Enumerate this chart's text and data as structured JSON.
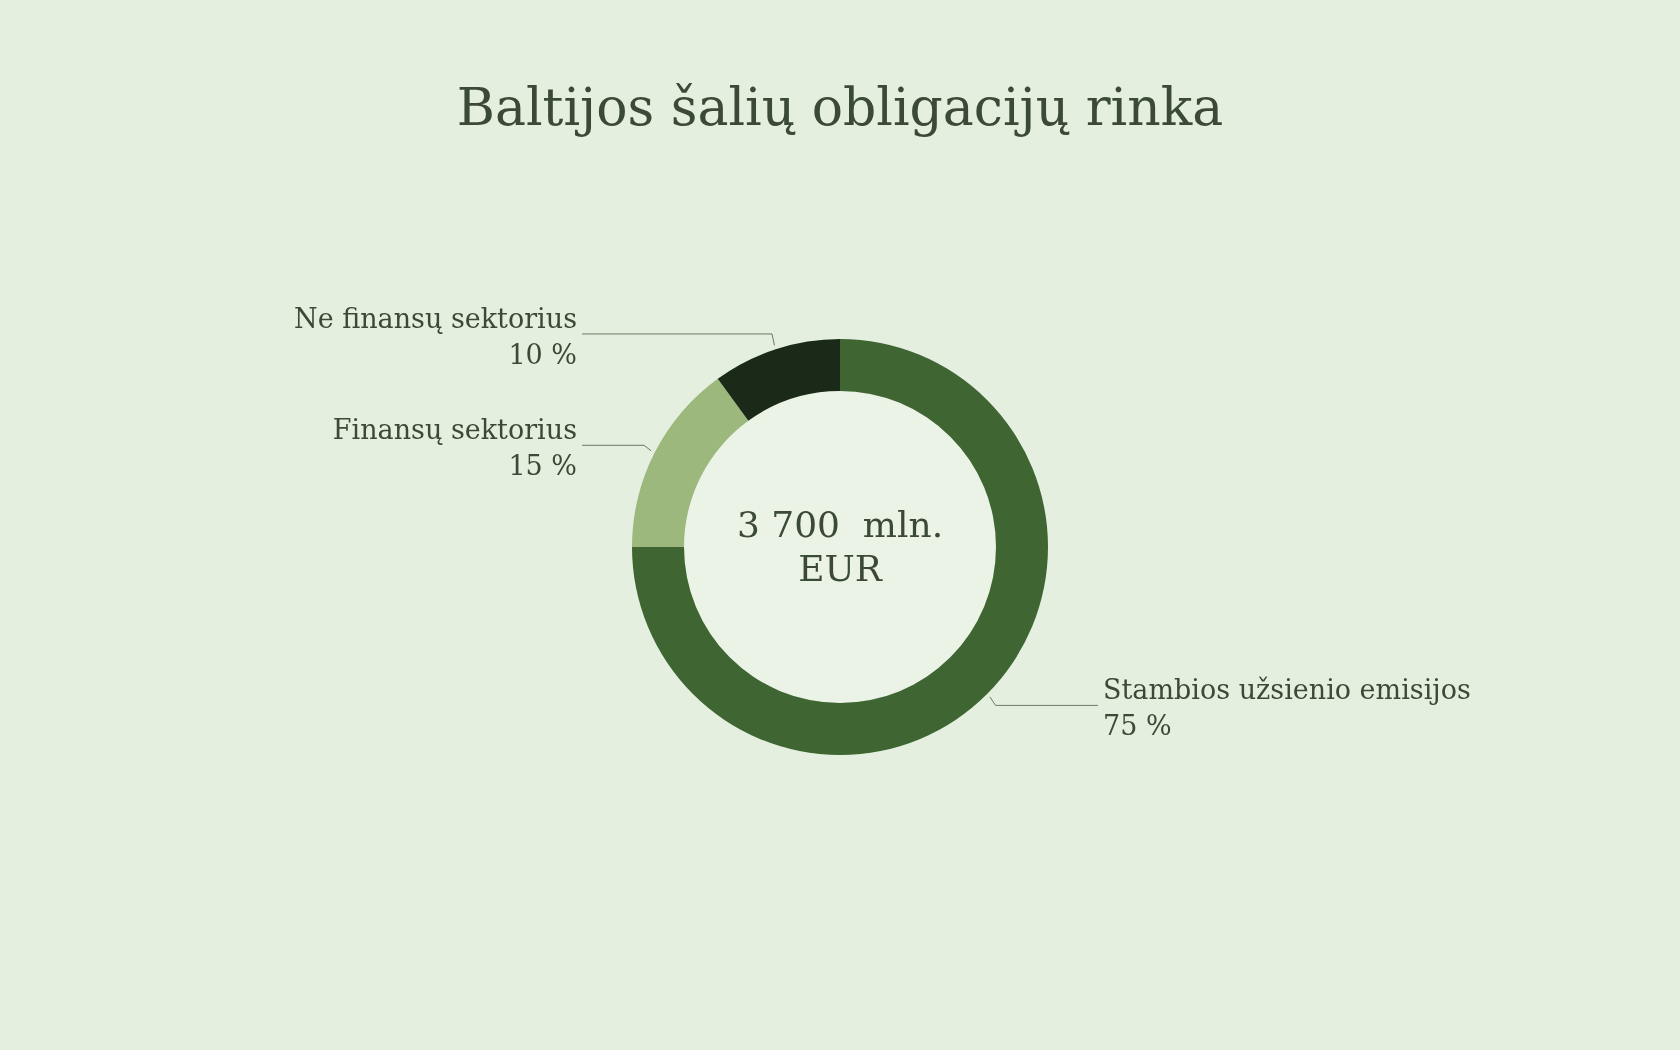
{
  "chart_data": {
    "type": "donut",
    "title": "Baltijos šalių obligacijų rinka",
    "categories": [
      "Stambios užsienio emisijos",
      "Finansų sektorius",
      "Ne finansų sektorius"
    ],
    "values": [
      75,
      15,
      10
    ],
    "colors": [
      "#3e6532",
      "#9cb87d",
      "#1b2a18"
    ],
    "value_labels": [
      "75 %",
      "15 %",
      "10 %"
    ],
    "annotations": [
      "3 700  mln. EUR"
    ]
  }
}
